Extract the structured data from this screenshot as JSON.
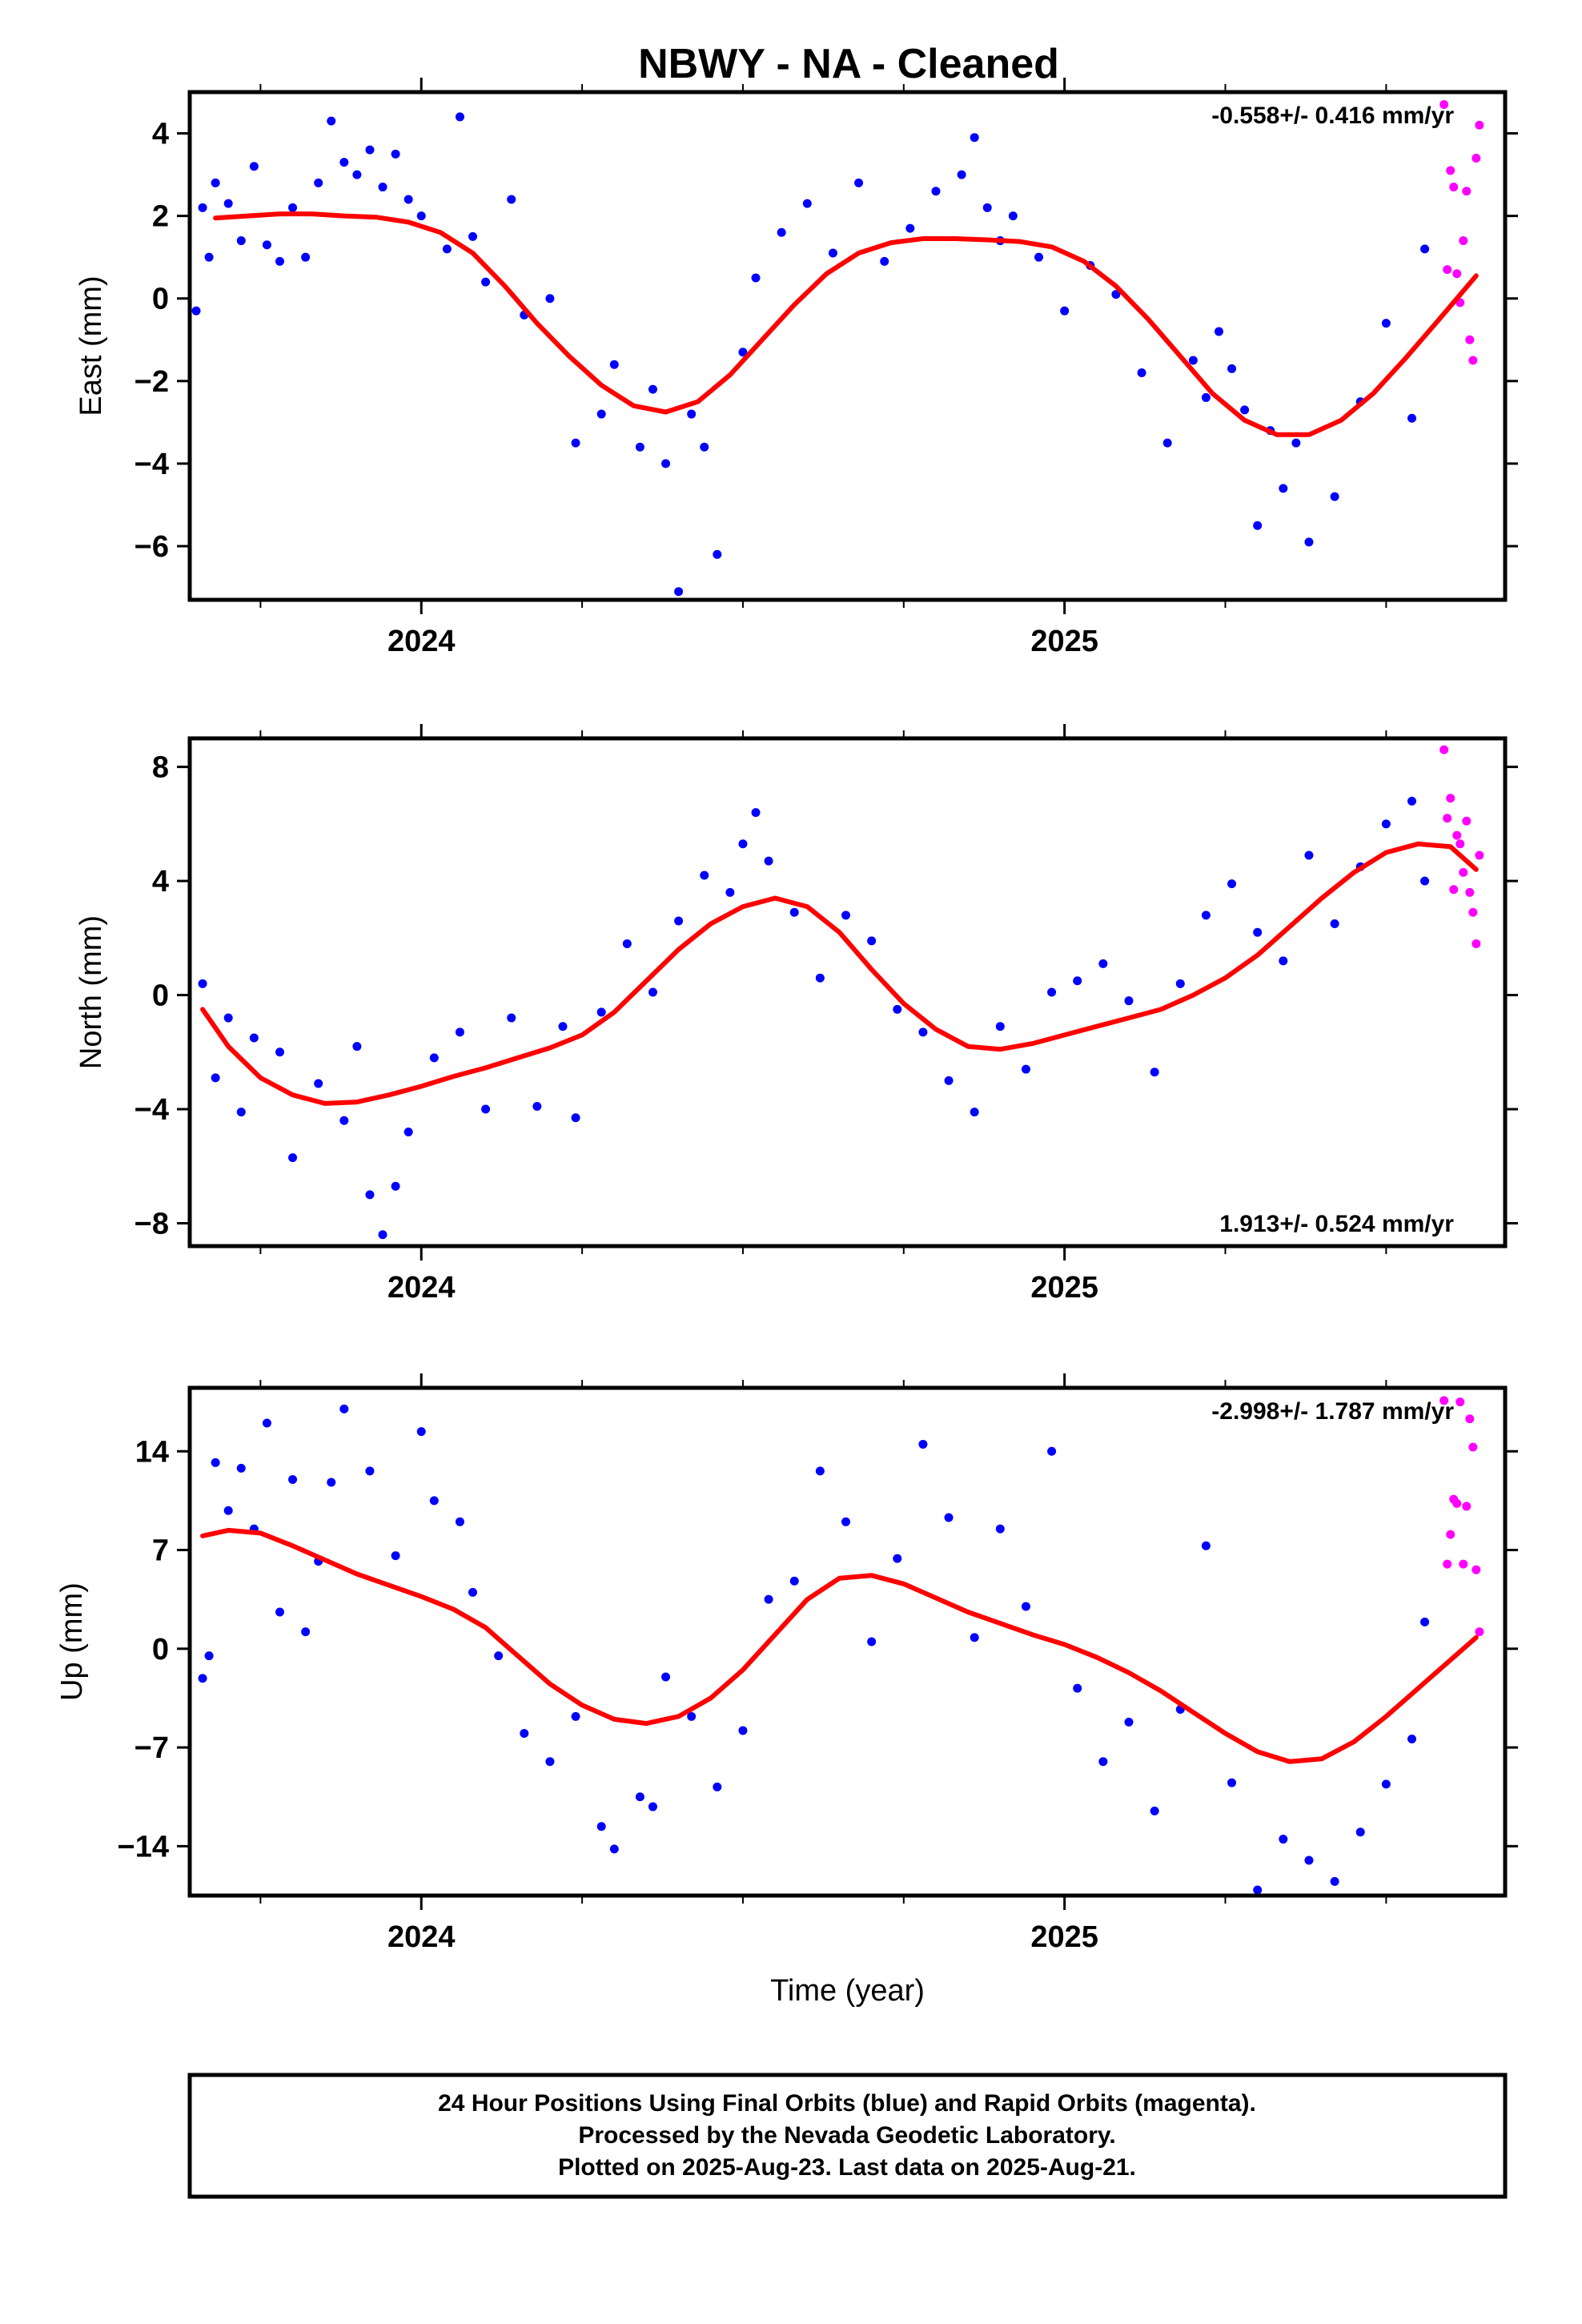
{
  "title": "NBWY  - NA - Cleaned",
  "colors": {
    "final_orbits": "#0000ff",
    "rapid_orbits": "#ff00ff",
    "model_fit": "#ff0000",
    "frame": "#000000"
  },
  "chart_data": [
    {
      "type": "scatter",
      "ylabel": "East (mm)",
      "rate": "-0.558+/- 0.416 mm/yr",
      "rate_position": "top-right",
      "xlim": [
        2023.64,
        2025.685
      ],
      "ylim": [
        -7.3,
        5.0
      ],
      "yticks": [
        -6,
        -4,
        -2,
        0,
        2,
        4
      ],
      "xticks_major": [
        2024,
        2025
      ],
      "xticks_labels": [
        "2024",
        "2025"
      ],
      "fit": {
        "x": [
          2023.68,
          2023.73,
          2023.78,
          2023.83,
          2023.88,
          2023.93,
          2023.98,
          2024.03,
          2024.08,
          2024.13,
          2024.18,
          2024.23,
          2024.28,
          2024.33,
          2024.38,
          2024.43,
          2024.48,
          2024.53,
          2024.58,
          2024.63,
          2024.68,
          2024.73,
          2024.78,
          2024.83,
          2024.88,
          2024.93,
          2024.98,
          2025.03,
          2025.08,
          2025.13,
          2025.18,
          2025.23,
          2025.28,
          2025.33,
          2025.38,
          2025.43,
          2025.48,
          2025.53,
          2025.58,
          2025.64
        ],
        "y": [
          1.95,
          2.0,
          2.05,
          2.05,
          2.0,
          1.97,
          1.85,
          1.6,
          1.1,
          0.3,
          -0.6,
          -1.4,
          -2.1,
          -2.6,
          -2.75,
          -2.5,
          -1.85,
          -1.0,
          -0.15,
          0.6,
          1.1,
          1.35,
          1.45,
          1.45,
          1.42,
          1.38,
          1.25,
          0.9,
          0.3,
          -0.5,
          -1.4,
          -2.3,
          -2.95,
          -3.3,
          -3.3,
          -2.95,
          -2.3,
          -1.45,
          -0.55,
          0.55
        ]
      },
      "series": [
        {
          "name": "Final Orbits",
          "color": "#0000ff",
          "x": [
            2023.65,
            2023.66,
            2023.67,
            2023.68,
            2023.7,
            2023.72,
            2023.74,
            2023.76,
            2023.78,
            2023.8,
            2023.82,
            2023.84,
            2023.86,
            2023.88,
            2023.9,
            2023.92,
            2023.94,
            2023.96,
            2023.98,
            2024.0,
            2024.04,
            2024.06,
            2024.08,
            2024.1,
            2024.14,
            2024.16,
            2024.2,
            2024.24,
            2024.28,
            2024.3,
            2024.34,
            2024.36,
            2024.38,
            2024.4,
            2024.42,
            2024.44,
            2024.46,
            2024.5,
            2024.52,
            2024.56,
            2024.6,
            2024.64,
            2024.68,
            2024.72,
            2024.76,
            2024.8,
            2024.84,
            2024.86,
            2024.88,
            2024.9,
            2024.92,
            2024.96,
            2025.0,
            2025.04,
            2025.08,
            2025.12,
            2025.16,
            2025.2,
            2025.22,
            2025.24,
            2025.26,
            2025.28,
            2025.3,
            2025.32,
            2025.34,
            2025.36,
            2025.38,
            2025.42,
            2025.46,
            2025.5,
            2025.54,
            2025.56
          ],
          "y": [
            -0.3,
            2.2,
            1.0,
            2.8,
            2.3,
            1.4,
            3.2,
            1.3,
            0.9,
            2.2,
            1.0,
            2.8,
            4.3,
            3.3,
            3.0,
            3.6,
            2.7,
            3.5,
            2.4,
            2.0,
            1.2,
            4.4,
            1.5,
            0.4,
            2.4,
            -0.4,
            0.0,
            -3.5,
            -2.8,
            -1.6,
            -3.6,
            -2.2,
            -4.0,
            -7.1,
            -2.8,
            -3.6,
            -6.2,
            -1.3,
            0.5,
            1.6,
            2.3,
            1.1,
            2.8,
            0.9,
            1.7,
            2.6,
            3.0,
            3.9,
            2.2,
            1.4,
            2.0,
            1.0,
            -0.3,
            0.8,
            0.1,
            -1.8,
            -3.5,
            -1.5,
            -2.4,
            -0.8,
            -1.7,
            -2.7,
            -5.5,
            -3.2,
            -4.6,
            -3.5,
            -5.9,
            -4.8,
            -2.5,
            -0.6,
            -2.9,
            1.2
          ]
        },
        {
          "name": "Rapid Orbits",
          "color": "#ff00ff",
          "x": [
            2025.59,
            2025.6,
            2025.61,
            2025.62,
            2025.63,
            2025.64
          ],
          "y": [
            4.7,
            3.1,
            0.6,
            1.4,
            -1.0,
            3.4
          ],
          "x2": [
            2025.595,
            2025.605,
            2025.615,
            2025.625,
            2025.635,
            2025.645
          ],
          "y2": [
            0.7,
            2.7,
            -0.1,
            2.6,
            -1.5,
            4.2
          ]
        }
      ]
    },
    {
      "type": "scatter",
      "ylabel": "North (mm)",
      "rate": "1.913+/- 0.524 mm/yr",
      "rate_position": "bottom-right",
      "xlim": [
        2023.64,
        2025.685
      ],
      "ylim": [
        -8.8,
        9.0
      ],
      "yticks": [
        -8,
        -4,
        0,
        4,
        8
      ],
      "xticks_major": [
        2024,
        2025
      ],
      "xticks_labels": [
        "2024",
        "2025"
      ],
      "fit": {
        "x": [
          2023.66,
          2023.7,
          2023.75,
          2023.8,
          2023.85,
          2023.9,
          2023.95,
          2024.0,
          2024.05,
          2024.1,
          2024.15,
          2024.2,
          2024.25,
          2024.3,
          2024.35,
          2024.4,
          2024.45,
          2024.5,
          2024.55,
          2024.6,
          2024.65,
          2024.7,
          2024.75,
          2024.8,
          2024.85,
          2024.9,
          2024.95,
          2025.0,
          2025.05,
          2025.1,
          2025.15,
          2025.2,
          2025.25,
          2025.3,
          2025.35,
          2025.4,
          2025.45,
          2025.5,
          2025.55,
          2025.6,
          2025.64
        ],
        "y": [
          -0.5,
          -1.8,
          -2.9,
          -3.5,
          -3.8,
          -3.75,
          -3.5,
          -3.2,
          -2.85,
          -2.55,
          -2.2,
          -1.85,
          -1.4,
          -0.6,
          0.5,
          1.6,
          2.5,
          3.1,
          3.4,
          3.1,
          2.2,
          0.9,
          -0.3,
          -1.2,
          -1.8,
          -1.9,
          -1.7,
          -1.4,
          -1.1,
          -0.8,
          -0.5,
          0.0,
          0.6,
          1.4,
          2.4,
          3.4,
          4.3,
          5.0,
          5.3,
          5.2,
          4.4
        ]
      },
      "series": [
        {
          "name": "Final Orbits",
          "color": "#0000ff",
          "x": [
            2023.66,
            2023.68,
            2023.7,
            2023.72,
            2023.74,
            2023.78,
            2023.8,
            2023.84,
            2023.88,
            2023.9,
            2023.92,
            2023.94,
            2023.96,
            2023.98,
            2024.02,
            2024.06,
            2024.1,
            2024.14,
            2024.18,
            2024.22,
            2024.24,
            2024.28,
            2024.32,
            2024.36,
            2024.4,
            2024.44,
            2024.48,
            2024.5,
            2024.52,
            2024.54,
            2024.58,
            2024.62,
            2024.66,
            2024.7,
            2024.74,
            2024.78,
            2024.82,
            2024.86,
            2024.9,
            2024.94,
            2024.98,
            2025.02,
            2025.06,
            2025.1,
            2025.14,
            2025.18,
            2025.22,
            2025.26,
            2025.3,
            2025.34,
            2025.38,
            2025.42,
            2025.46,
            2025.5,
            2025.54,
            2025.56
          ],
          "y": [
            0.4,
            -2.9,
            -0.8,
            -4.1,
            -1.5,
            -2.0,
            -5.7,
            -3.1,
            -4.4,
            -1.8,
            -7.0,
            -8.4,
            -6.7,
            -4.8,
            -2.2,
            -1.3,
            -4.0,
            -0.8,
            -3.9,
            -1.1,
            -4.3,
            -0.6,
            1.8,
            0.1,
            2.6,
            4.2,
            3.6,
            5.3,
            6.4,
            4.7,
            2.9,
            0.6,
            2.8,
            1.9,
            -0.5,
            -1.3,
            -3.0,
            -4.1,
            -1.1,
            -2.6,
            0.1,
            0.5,
            1.1,
            -0.2,
            -2.7,
            0.4,
            2.8,
            3.9,
            2.2,
            1.2,
            4.9,
            2.5,
            4.5,
            6.0,
            6.8,
            4.0
          ]
        },
        {
          "name": "Rapid Orbits",
          "color": "#ff00ff",
          "x": [
            2025.59,
            2025.6,
            2025.61,
            2025.62,
            2025.63,
            2025.64,
            2025.595,
            2025.605,
            2025.615,
            2025.625,
            2025.635,
            2025.645
          ],
          "y": [
            8.6,
            6.9,
            5.6,
            4.3,
            3.6,
            1.8,
            6.2,
            3.7,
            5.3,
            6.1,
            2.9,
            4.9
          ]
        }
      ]
    },
    {
      "type": "scatter",
      "ylabel": "Up (mm)",
      "xlabel": "Time (year)",
      "rate": "-2.998+/- 1.787 mm/yr",
      "rate_position": "top-right",
      "xlim": [
        2023.64,
        2025.685
      ],
      "ylim": [
        -17.5,
        18.5
      ],
      "yticks": [
        -14,
        -7,
        0,
        7,
        14
      ],
      "xticks_major": [
        2024,
        2025
      ],
      "xticks_labels": [
        "2024",
        "2025"
      ],
      "fit": {
        "x": [
          2023.66,
          2023.7,
          2023.75,
          2023.8,
          2023.85,
          2023.9,
          2023.95,
          2024.0,
          2024.05,
          2024.1,
          2024.15,
          2024.2,
          2024.25,
          2024.3,
          2024.35,
          2024.4,
          2024.45,
          2024.5,
          2024.55,
          2024.6,
          2024.65,
          2024.7,
          2024.75,
          2024.8,
          2024.85,
          2024.9,
          2024.95,
          2025.0,
          2025.05,
          2025.1,
          2025.15,
          2025.2,
          2025.25,
          2025.3,
          2025.35,
          2025.4,
          2025.45,
          2025.5,
          2025.55,
          2025.6,
          2025.64
        ],
        "y": [
          8.0,
          8.4,
          8.2,
          7.3,
          6.3,
          5.3,
          4.5,
          3.7,
          2.8,
          1.5,
          -0.5,
          -2.5,
          -4.0,
          -5.0,
          -5.3,
          -4.8,
          -3.5,
          -1.5,
          1.0,
          3.5,
          5.0,
          5.2,
          4.6,
          3.6,
          2.6,
          1.8,
          1.0,
          0.3,
          -0.6,
          -1.7,
          -3.0,
          -4.5,
          -6.0,
          -7.3,
          -8.0,
          -7.8,
          -6.6,
          -4.8,
          -2.8,
          -0.8,
          0.8
        ]
      },
      "series": [
        {
          "name": "Final Orbits",
          "color": "#0000ff",
          "x": [
            2023.66,
            2023.67,
            2023.68,
            2023.7,
            2023.72,
            2023.74,
            2023.76,
            2023.78,
            2023.8,
            2023.82,
            2023.84,
            2023.86,
            2023.88,
            2023.92,
            2023.96,
            2024.0,
            2024.02,
            2024.06,
            2024.08,
            2024.12,
            2024.16,
            2024.2,
            2024.24,
            2024.28,
            2024.3,
            2024.34,
            2024.36,
            2024.38,
            2024.42,
            2024.46,
            2024.5,
            2024.54,
            2024.58,
            2024.62,
            2024.66,
            2024.7,
            2024.74,
            2024.78,
            2024.82,
            2024.86,
            2024.9,
            2024.94,
            2024.98,
            2025.02,
            2025.06,
            2025.1,
            2025.14,
            2025.18,
            2025.22,
            2025.26,
            2025.3,
            2025.34,
            2025.38,
            2025.42,
            2025.46,
            2025.5,
            2025.54,
            2025.56
          ],
          "y": [
            -2.1,
            -0.5,
            13.2,
            9.8,
            12.8,
            8.5,
            16.0,
            2.6,
            12.0,
            1.2,
            6.2,
            11.8,
            17.0,
            12.6,
            6.6,
            15.4,
            10.5,
            9.0,
            4.0,
            -0.5,
            -6.0,
            -8.0,
            -4.8,
            -12.6,
            -14.2,
            -10.5,
            -11.2,
            -2.0,
            -4.8,
            -9.8,
            -5.8,
            3.5,
            4.8,
            12.6,
            9.0,
            0.5,
            6.4,
            14.5,
            9.3,
            0.8,
            8.5,
            3.0,
            14.0,
            -2.8,
            -8.0,
            -5.2,
            -11.5,
            -4.3,
            7.3,
            -9.5,
            -17.1,
            -13.5,
            -15.0,
            -16.5,
            -13.0,
            -9.6,
            -6.4,
            1.9
          ]
        },
        {
          "name": "Rapid Orbits",
          "color": "#ff00ff",
          "x": [
            2025.59,
            2025.6,
            2025.61,
            2025.62,
            2025.63,
            2025.64,
            2025.595,
            2025.605,
            2025.615,
            2025.625,
            2025.635,
            2025.645
          ],
          "y": [
            17.6,
            8.1,
            10.3,
            6.0,
            16.3,
            5.6,
            6.0,
            10.6,
            17.5,
            10.1,
            14.3,
            1.2
          ]
        }
      ]
    }
  ],
  "footer": {
    "line1": "24 Hour Positions Using Final Orbits (blue) and Rapid Orbits (magenta).",
    "line2": "Processed by the Nevada Geodetic Laboratory.",
    "line3": "Plotted on 2025-Aug-23. Last data on 2025-Aug-21."
  }
}
